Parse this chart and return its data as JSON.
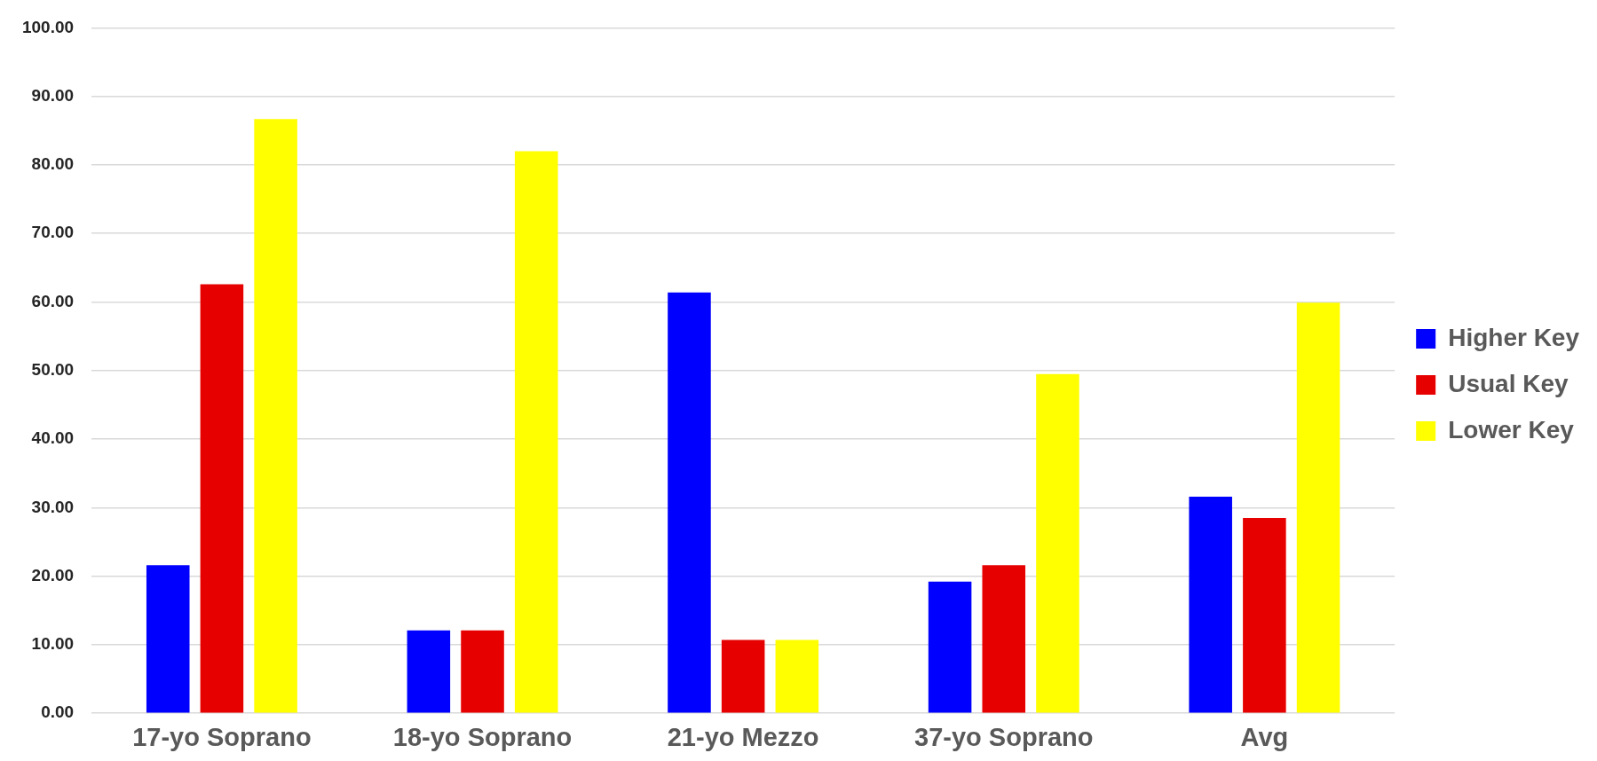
{
  "chart_data": {
    "type": "bar",
    "categories": [
      "17-yo Soprano",
      "18-yo Soprano",
      "21-yo Mezzo",
      "37-yo Soprano",
      "Avg"
    ],
    "series": [
      {
        "name": "Higher Key",
        "color": "#0000ff",
        "values": [
          21.6,
          12.1,
          61.4,
          19.2,
          31.6
        ]
      },
      {
        "name": "Usual Key",
        "color": "#e60000",
        "values": [
          62.6,
          12.1,
          10.7,
          21.6,
          28.5
        ]
      },
      {
        "name": "Lower Key",
        "color": "#ffff00",
        "values": [
          86.7,
          82.0,
          10.7,
          49.5,
          59.9
        ]
      }
    ],
    "ylim": [
      0,
      100
    ],
    "yticks": [
      {
        "value": 0,
        "label": "0.00"
      },
      {
        "value": 10,
        "label": "10.00"
      },
      {
        "value": 20,
        "label": "20.00"
      },
      {
        "value": 30,
        "label": "30.00"
      },
      {
        "value": 40,
        "label": "40.00"
      },
      {
        "value": 50,
        "label": "50.00"
      },
      {
        "value": 60,
        "label": "60.00"
      },
      {
        "value": 70,
        "label": "70.00"
      },
      {
        "value": 80,
        "label": "80.00"
      },
      {
        "value": 90,
        "label": "90.00"
      },
      {
        "value": 100,
        "label": "100.00"
      }
    ],
    "grid": "y",
    "legend": "right"
  }
}
